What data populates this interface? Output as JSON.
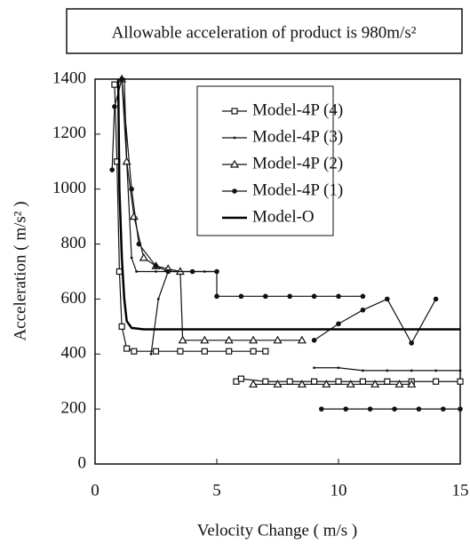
{
  "chart_data": {
    "type": "line",
    "title": "Allowable acceleration of product is 980m/s²",
    "x_label": "Velocity Change ( m/s )",
    "y_label": "Acceleration ( m/s² )",
    "xlim": [
      0,
      15
    ],
    "xticks": [
      0,
      5,
      10,
      15
    ],
    "ylim": [
      0,
      1400
    ],
    "yticks": [
      0,
      200,
      400,
      600,
      800,
      1000,
      1200,
      1400
    ],
    "grid": false,
    "legend": "upper center",
    "series": [
      {
        "name": "Model-4P (4)",
        "color": "#111111",
        "marker": "square",
        "x": [
          0.8,
          0.9,
          1.0,
          1.1,
          1.3,
          1.6,
          2.5,
          3.5,
          4.5,
          5.5,
          6.5,
          7.0,
          null,
          5.8,
          6.0,
          7.0,
          8.0,
          9.0,
          10.0,
          11.0,
          12.0,
          13.0,
          14.0,
          15.0
        ],
        "values": [
          1380,
          1100,
          700,
          500,
          420,
          410,
          410,
          410,
          410,
          410,
          410,
          410,
          null,
          300,
          310,
          300,
          300,
          300,
          300,
          300,
          300,
          300,
          300,
          300
        ]
      },
      {
        "name": "Model-4P (3)",
        "color": "#111111",
        "marker": "tick",
        "x": [
          1.2,
          1.3,
          1.5,
          1.7,
          2.5,
          3.5,
          4.5,
          5.0,
          null,
          2.3,
          2.6,
          3.0,
          null,
          9.0,
          10.0,
          11.0,
          12.0,
          13.0,
          14.0,
          15.0
        ],
        "values": [
          1400,
          1100,
          750,
          700,
          700,
          700,
          700,
          700,
          null,
          400,
          600,
          700,
          null,
          350,
          350,
          340,
          340,
          340,
          340,
          340
        ]
      },
      {
        "name": "Model-4P (2)",
        "color": "#111111",
        "marker": "triangle",
        "x": [
          1.1,
          1.3,
          1.6,
          2.0,
          2.5,
          3.0,
          3.5,
          3.6,
          4.5,
          5.5,
          6.5,
          7.5,
          8.5,
          null,
          6.5,
          7.5,
          8.5,
          9.5,
          10.5,
          11.5,
          12.5,
          13.0
        ],
        "values": [
          1400,
          1100,
          900,
          750,
          720,
          710,
          700,
          450,
          450,
          450,
          450,
          450,
          450,
          null,
          290,
          290,
          290,
          290,
          290,
          290,
          290,
          290
        ]
      },
      {
        "name": "Model-4P (1)",
        "color": "#111111",
        "marker": "dot",
        "x": [
          0.7,
          0.8,
          1.1,
          1.5,
          1.8,
          2.5,
          3.0,
          4.0,
          5.0,
          5.0,
          6.0,
          7.0,
          8.0,
          9.0,
          10.0,
          11.0,
          null,
          9.0,
          10.0,
          11.0,
          12.0,
          13.0,
          14.0,
          null,
          9.3,
          10.3,
          11.3,
          12.3,
          13.3,
          14.3,
          15.0
        ],
        "values": [
          1070,
          1300,
          1400,
          1000,
          800,
          720,
          700,
          700,
          700,
          610,
          610,
          610,
          610,
          610,
          610,
          610,
          null,
          450,
          510,
          560,
          600,
          440,
          600,
          null,
          200,
          200,
          200,
          200,
          200,
          200,
          200
        ]
      },
      {
        "name": "Model-O",
        "color": "#000000",
        "marker": "none",
        "x": [
          0.95,
          1.0,
          1.1,
          1.2,
          1.3,
          1.5,
          2.0,
          15.0
        ],
        "values": [
          1400,
          1000,
          750,
          600,
          520,
          495,
          490,
          490
        ]
      }
    ]
  }
}
